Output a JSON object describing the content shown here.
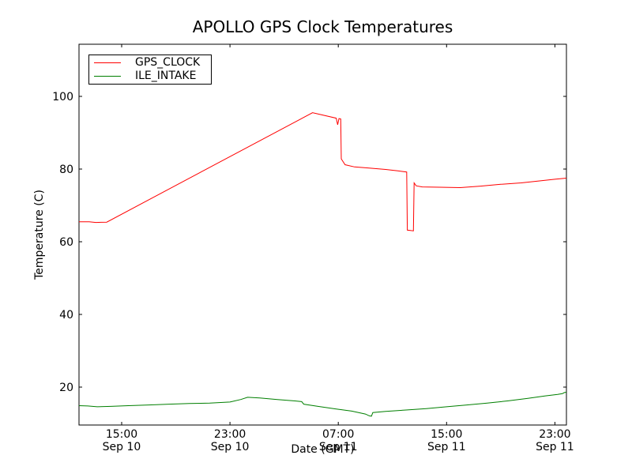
{
  "figure": {
    "background": "#ffffff",
    "axis_color": "#000000"
  },
  "chart_data": {
    "type": "line",
    "title": "APOLLO GPS Clock Temperatures",
    "xlabel": "Date (GMT)",
    "ylabel": "Temperature (C)",
    "grid": false,
    "legend_position": "upper-left",
    "x_unit": "hours since Sep 10 00:00 GMT",
    "xlim": [
      11.85,
      47.85
    ],
    "ylim": [
      9.57,
      114.35
    ],
    "x_ticks": [
      {
        "value": 15,
        "label": [
          "15:00",
          "Sep 10"
        ]
      },
      {
        "value": 23,
        "label": [
          "23:00",
          "Sep 10"
        ]
      },
      {
        "value": 31,
        "label": [
          "07:00",
          "Sep 11"
        ]
      },
      {
        "value": 39,
        "label": [
          "15:00",
          "Sep 11"
        ]
      },
      {
        "value": 47,
        "label": [
          "23:00",
          "Sep 11"
        ]
      }
    ],
    "y_ticks": [
      {
        "value": 20,
        "label": "20"
      },
      {
        "value": 40,
        "label": "40"
      },
      {
        "value": 60,
        "label": "60"
      },
      {
        "value": 80,
        "label": "80"
      },
      {
        "value": 100,
        "label": "100"
      }
    ],
    "series": [
      {
        "name": "GPS_CLOCK",
        "color": "#ff0000",
        "points": [
          [
            11.85,
            65.5
          ],
          [
            12.6,
            65.5
          ],
          [
            13.1,
            65.3
          ],
          [
            13.9,
            65.4
          ],
          [
            29.1,
            95.5
          ],
          [
            30.85,
            94.0
          ],
          [
            30.95,
            92.2
          ],
          [
            31.05,
            93.9
          ],
          [
            31.18,
            93.8
          ],
          [
            31.22,
            82.8
          ],
          [
            31.5,
            81.2
          ],
          [
            32.2,
            80.6
          ],
          [
            33.2,
            80.3
          ],
          [
            34.5,
            79.9
          ],
          [
            35.4,
            79.5
          ],
          [
            36.05,
            79.2
          ],
          [
            36.1,
            63.2
          ],
          [
            36.55,
            63.0
          ],
          [
            36.6,
            76.2
          ],
          [
            36.75,
            75.4
          ],
          [
            37.2,
            75.1
          ],
          [
            38.5,
            75.0
          ],
          [
            40.0,
            74.9
          ],
          [
            41.5,
            75.3
          ],
          [
            43.0,
            75.8
          ],
          [
            44.5,
            76.2
          ],
          [
            46.0,
            76.8
          ],
          [
            47.0,
            77.2
          ],
          [
            47.85,
            77.5
          ]
        ]
      },
      {
        "name": "ILE_INTAKE",
        "color": "#007f00",
        "points": [
          [
            11.85,
            14.9
          ],
          [
            12.5,
            14.8
          ],
          [
            13.2,
            14.6
          ],
          [
            14.2,
            14.7
          ],
          [
            15.5,
            14.9
          ],
          [
            17.0,
            15.1
          ],
          [
            18.5,
            15.3
          ],
          [
            20.0,
            15.5
          ],
          [
            21.5,
            15.6
          ],
          [
            23.0,
            15.9
          ],
          [
            23.8,
            16.6
          ],
          [
            24.3,
            17.2
          ],
          [
            25.2,
            17.0
          ],
          [
            26.5,
            16.6
          ],
          [
            27.8,
            16.2
          ],
          [
            28.3,
            16.0
          ],
          [
            28.45,
            15.3
          ],
          [
            29.5,
            14.7
          ],
          [
            30.8,
            14.0
          ],
          [
            32.0,
            13.4
          ],
          [
            33.0,
            12.6
          ],
          [
            33.3,
            12.1
          ],
          [
            33.45,
            12.0
          ],
          [
            33.55,
            13.0
          ],
          [
            34.5,
            13.3
          ],
          [
            36.0,
            13.7
          ],
          [
            37.5,
            14.1
          ],
          [
            39.0,
            14.6
          ],
          [
            40.5,
            15.1
          ],
          [
            42.0,
            15.6
          ],
          [
            43.5,
            16.2
          ],
          [
            45.0,
            16.9
          ],
          [
            46.3,
            17.6
          ],
          [
            47.2,
            18.0
          ],
          [
            47.55,
            18.2
          ],
          [
            47.7,
            18.5
          ],
          [
            47.85,
            18.6
          ]
        ]
      }
    ]
  }
}
